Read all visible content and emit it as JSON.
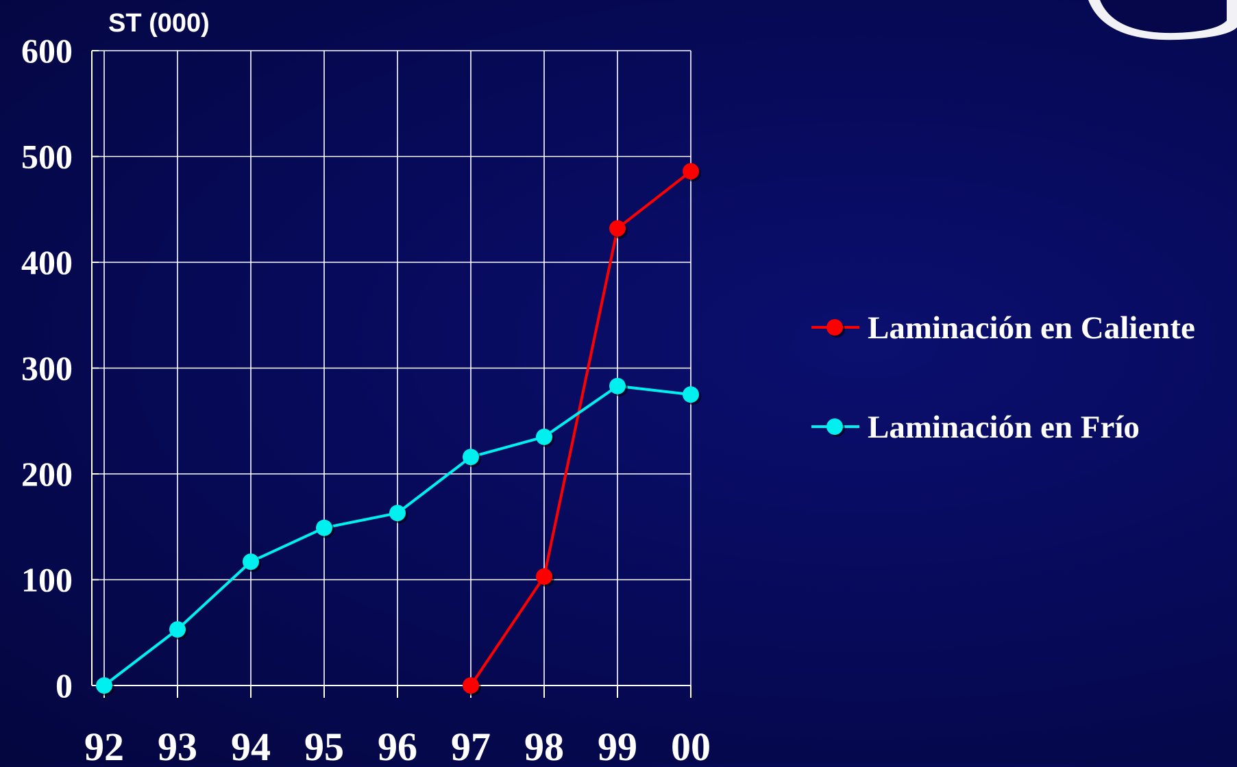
{
  "chart_data": {
    "type": "line",
    "ylabel": "ST (000)",
    "ylim": [
      0,
      600
    ],
    "yticks": [
      "0",
      "100",
      "200",
      "300",
      "400",
      "500",
      "600"
    ],
    "categories": [
      "92",
      "93",
      "94",
      "95",
      "96",
      "97",
      "98",
      "99",
      "00"
    ],
    "grid": true,
    "legend_position": "right",
    "series": [
      {
        "name": "Laminación en Caliente",
        "color": "#ff0000",
        "values": [
          null,
          null,
          null,
          null,
          null,
          0,
          103,
          432,
          486
        ]
      },
      {
        "name": "Laminación en Frío",
        "color": "#00f0f0",
        "values": [
          0,
          53,
          117,
          149,
          163,
          216,
          235,
          283,
          275
        ]
      }
    ]
  }
}
